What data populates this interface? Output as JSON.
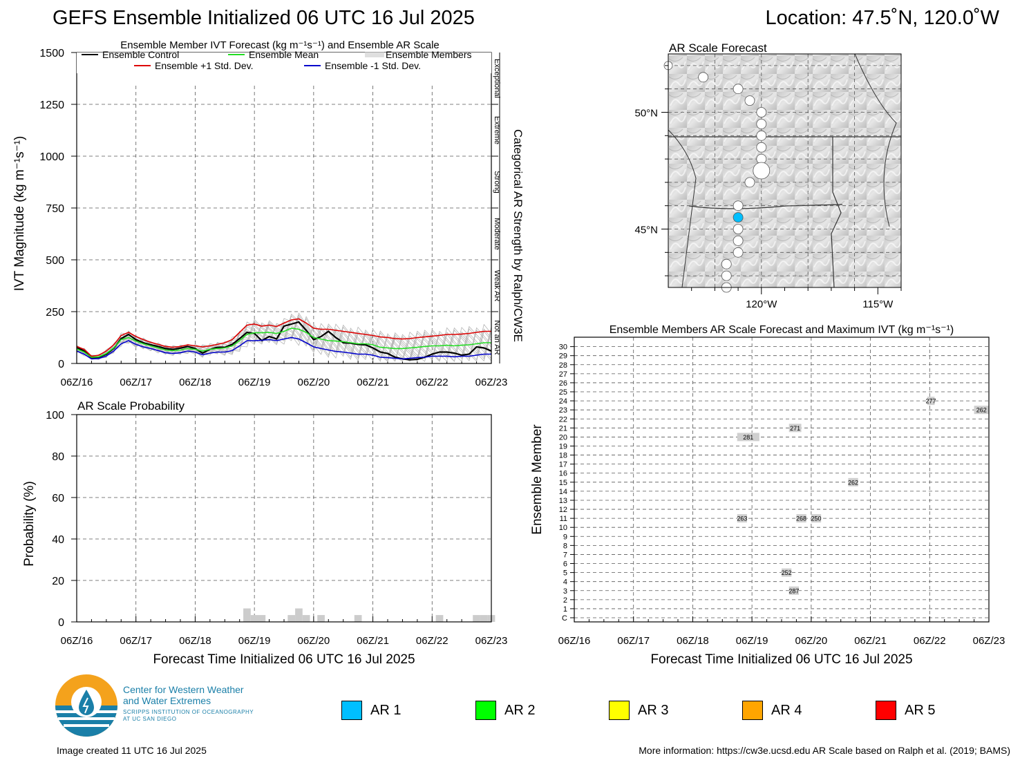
{
  "header": {
    "title": "GEFS Ensemble Initialized 06 UTC 16 Jul 2025",
    "location": "Location: 47.5˚N, 120.0˚W"
  },
  "footer": {
    "created": "Image created 11 UTC 16 Jul 2025",
    "more_info": "More information: https://cw3e.ucsd.edu AR Scale based on Ralph et al. (2019; BAMS)"
  },
  "logo": {
    "line1": "Center for Western Weather",
    "line2": "and Water Extremes",
    "line3": "SCRIPPS INSTITUTION OF OCEANOGRAPHY",
    "line4": "AT UC SAN DIEGO"
  },
  "ar_legend": [
    {
      "label": "AR 1",
      "color": "#00bfff"
    },
    {
      "label": "AR 2",
      "color": "#00ff00"
    },
    {
      "label": "AR 3",
      "color": "#ffff00"
    },
    {
      "label": "AR 4",
      "color": "#ffa500"
    },
    {
      "label": "AR 5",
      "color": "#ff0000"
    }
  ],
  "chart_data": [
    {
      "id": "ivt",
      "type": "line",
      "title": "Ensemble Member IVT Forecast (kg m⁻¹s⁻¹) and Ensemble AR Scale",
      "ylabel": "IVT Magnitude (kg m⁻¹s⁻¹)",
      "right_label": "Categorical AR Strength by Ralph/CW3E",
      "ylim": [
        0,
        1500
      ],
      "xlim": [
        0,
        168
      ],
      "yticks": [
        0,
        250,
        500,
        750,
        1000,
        1250,
        1500
      ],
      "xticks": [
        0,
        24,
        48,
        72,
        96,
        120,
        144,
        168
      ],
      "xticklabels": [
        "06Z/16",
        "06Z/17",
        "06Z/18",
        "06Z/19",
        "06Z/20",
        "06Z/21",
        "06Z/22",
        "06Z/23"
      ],
      "grid": true,
      "categories_right": [
        {
          "label": "Exceptional",
          "from": 1250,
          "to": 1500
        },
        {
          "label": "Extreme",
          "from": 1000,
          "to": 1250
        },
        {
          "label": "Strong",
          "from": 750,
          "to": 1000
        },
        {
          "label": "Moderate",
          "from": 500,
          "to": 750
        },
        {
          "label": "Weak AR",
          "from": 250,
          "to": 500
        },
        {
          "label": "Not an AR",
          "from": 0,
          "to": 250
        }
      ],
      "legend": [
        {
          "name": "Ensemble Control",
          "color": "#000000"
        },
        {
          "name": "Ensemble Mean",
          "color": "#22dd22"
        },
        {
          "name": "Ensemble Members",
          "color": "#aaaaaa"
        },
        {
          "name": "Ensemble +1 Std. Dev.",
          "color": "#dd0000"
        },
        {
          "name": "Ensemble -1 Std. Dev.",
          "color": "#0000cc"
        }
      ],
      "x": [
        0,
        3,
        6,
        9,
        12,
        15,
        18,
        21,
        24,
        27,
        30,
        33,
        36,
        39,
        42,
        45,
        48,
        51,
        54,
        57,
        60,
        63,
        66,
        69,
        72,
        75,
        78,
        81,
        84,
        87,
        90,
        93,
        96,
        99,
        102,
        105,
        108,
        111,
        114,
        117,
        120,
        123,
        126,
        129,
        132,
        135,
        138,
        141,
        144,
        147,
        150,
        153,
        156,
        159,
        162,
        165,
        168
      ],
      "series": [
        {
          "name": "Ensemble Control",
          "color": "#000000",
          "values": [
            78,
            60,
            28,
            30,
            45,
            72,
            120,
            140,
            115,
            100,
            90,
            82,
            72,
            68,
            74,
            82,
            72,
            50,
            68,
            78,
            78,
            92,
            120,
            150,
            145,
            110,
            130,
            118,
            180,
            190,
            200,
            160,
            115,
            130,
            155,
            125,
            100,
            98,
            92,
            90,
            75,
            55,
            48,
            30,
            22,
            18,
            20,
            30,
            45,
            55,
            55,
            50,
            40,
            45,
            80,
            75,
            60
          ]
        },
        {
          "name": "Ensemble Mean",
          "color": "#22dd22",
          "values": [
            70,
            55,
            30,
            32,
            48,
            75,
            115,
            125,
            108,
            95,
            85,
            75,
            65,
            62,
            65,
            72,
            68,
            60,
            68,
            72,
            75,
            85,
            110,
            140,
            148,
            148,
            150,
            145,
            155,
            170,
            165,
            150,
            125,
            118,
            110,
            108,
            105,
            100,
            95,
            95,
            90,
            78,
            75,
            72,
            72,
            75,
            78,
            82,
            85,
            85,
            88,
            85,
            88,
            90,
            95,
            100,
            100
          ]
        },
        {
          "name": "Ensemble +1 Std. Dev.",
          "color": "#dd0000",
          "values": [
            82,
            68,
            35,
            40,
            60,
            90,
            135,
            150,
            130,
            115,
            102,
            92,
            82,
            78,
            82,
            90,
            85,
            80,
            85,
            92,
            100,
            115,
            150,
            185,
            190,
            180,
            185,
            178,
            195,
            210,
            215,
            195,
            170,
            165,
            165,
            160,
            155,
            150,
            145,
            140,
            135,
            128,
            125,
            120,
            118,
            120,
            125,
            128,
            132,
            135,
            140,
            140,
            142,
            145,
            150,
            155,
            155
          ]
        },
        {
          "name": "Ensemble -1 Std. Dev.",
          "color": "#0000cc",
          "values": [
            60,
            45,
            22,
            24,
            36,
            60,
            95,
            110,
            92,
            80,
            72,
            62,
            52,
            48,
            52,
            60,
            55,
            42,
            50,
            55,
            55,
            62,
            85,
            110,
            110,
            112,
            115,
            110,
            118,
            125,
            118,
            100,
            80,
            72,
            65,
            58,
            55,
            50,
            45,
            45,
            40,
            30,
            28,
            25,
            22,
            25,
            28,
            30,
            35,
            35,
            35,
            32,
            35,
            35,
            40,
            45,
            45
          ]
        }
      ]
    },
    {
      "id": "prob",
      "type": "bar",
      "title": "AR Scale Probability",
      "ylabel": "Probability (%)",
      "xlabel": "Forecast Time Initialized 06 UTC 16 Jul 2025",
      "ylim": [
        0,
        100
      ],
      "xlim": [
        0,
        168
      ],
      "yticks": [
        0,
        20,
        40,
        60,
        80,
        100
      ],
      "xticks": [
        0,
        24,
        48,
        72,
        96,
        120,
        144,
        168
      ],
      "xticklabels": [
        "06Z/16",
        "06Z/17",
        "06Z/18",
        "06Z/19",
        "06Z/20",
        "06Z/21",
        "06Z/22",
        "06Z/23"
      ],
      "bar_color": "#cccccc",
      "bars": [
        {
          "x": 69,
          "value": 6.5
        },
        {
          "x": 72,
          "value": 3.3
        },
        {
          "x": 75,
          "value": 3.3
        },
        {
          "x": 87,
          "value": 3.3
        },
        {
          "x": 90,
          "value": 6.5
        },
        {
          "x": 93,
          "value": 3.3
        },
        {
          "x": 99,
          "value": 3.3
        },
        {
          "x": 114,
          "value": 3.3
        },
        {
          "x": 147,
          "value": 3.3
        },
        {
          "x": 162,
          "value": 3.3
        },
        {
          "x": 165,
          "value": 3.3
        },
        {
          "x": 168,
          "value": 3.3
        }
      ]
    },
    {
      "id": "members",
      "type": "scatter",
      "title": "Ensemble Members AR Scale Forecast and Maximum IVT (kg m⁻¹s⁻¹)",
      "ylabel": "Ensemble Member",
      "xlabel": "Forecast Time Initialized 06 UTC 16 Jul 2025",
      "xlim": [
        0,
        168
      ],
      "xticks": [
        0,
        24,
        48,
        72,
        96,
        120,
        144,
        168
      ],
      "xticklabels": [
        "06Z/16",
        "06Z/17",
        "06Z/18",
        "06Z/19",
        "06Z/20",
        "06Z/21",
        "06Z/22",
        "06Z/23"
      ],
      "members": [
        "C",
        "1",
        "2",
        "3",
        "4",
        "5",
        "6",
        "7",
        "8",
        "9",
        "10",
        "11",
        "12",
        "13",
        "14",
        "15",
        "16",
        "17",
        "18",
        "19",
        "20",
        "21",
        "22",
        "23",
        "24",
        "25",
        "26",
        "27",
        "28",
        "29",
        "30"
      ],
      "events": [
        {
          "member": 23,
          "x_start": 162,
          "x_end": 168,
          "value": "262"
        },
        {
          "member": 24,
          "x_start": 143,
          "x_end": 146,
          "value": "277"
        },
        {
          "member": 21,
          "x_start": 87,
          "x_end": 92,
          "value": "271"
        },
        {
          "member": 20,
          "x_start": 66,
          "x_end": 75,
          "value": "281"
        },
        {
          "member": 15,
          "x_start": 111,
          "x_end": 115,
          "value": "262"
        },
        {
          "member": 11,
          "x_start": 66,
          "x_end": 70,
          "value": "263"
        },
        {
          "member": 11,
          "x_start": 90,
          "x_end": 94,
          "value": "268"
        },
        {
          "member": 11,
          "x_start": 96,
          "x_end": 100,
          "value": "250"
        },
        {
          "member": 5,
          "x_start": 84,
          "x_end": 88,
          "value": "252"
        },
        {
          "member": 3,
          "x_start": 87,
          "x_end": 91,
          "value": "287"
        }
      ]
    },
    {
      "id": "map",
      "type": "scatter",
      "title": "AR Scale Forecast",
      "lon_range": [
        -124,
        -114
      ],
      "lat_range": [
        42.5,
        52.5
      ],
      "xticklabels": [
        "120°W",
        "115°W"
      ],
      "yticklabels": [
        "50°N",
        "45°N"
      ],
      "points": [
        {
          "lon": -124.0,
          "lat": 52.0,
          "r": 6,
          "ar": 0
        },
        {
          "lon": -122.5,
          "lat": 51.5,
          "r": 7,
          "ar": 0
        },
        {
          "lon": -121.0,
          "lat": 51.0,
          "r": 7,
          "ar": 0
        },
        {
          "lon": -120.5,
          "lat": 50.5,
          "r": 7,
          "ar": 0
        },
        {
          "lon": -120.0,
          "lat": 50.0,
          "r": 7,
          "ar": 0
        },
        {
          "lon": -120.0,
          "lat": 49.5,
          "r": 7,
          "ar": 0
        },
        {
          "lon": -120.0,
          "lat": 49.0,
          "r": 7,
          "ar": 0
        },
        {
          "lon": -120.0,
          "lat": 48.5,
          "r": 7,
          "ar": 0
        },
        {
          "lon": -120.0,
          "lat": 48.0,
          "r": 7,
          "ar": 0
        },
        {
          "lon": -120.0,
          "lat": 47.5,
          "r": 12,
          "ar": 0
        },
        {
          "lon": -120.5,
          "lat": 47.0,
          "r": 7,
          "ar": 0
        },
        {
          "lon": -121.0,
          "lat": 46.0,
          "r": 7,
          "ar": 0
        },
        {
          "lon": -121.0,
          "lat": 45.5,
          "r": 7,
          "ar": 1
        },
        {
          "lon": -121.0,
          "lat": 45.0,
          "r": 7,
          "ar": 0
        },
        {
          "lon": -121.0,
          "lat": 44.5,
          "r": 7,
          "ar": 0
        },
        {
          "lon": -121.0,
          "lat": 44.0,
          "r": 7,
          "ar": 0
        },
        {
          "lon": -121.5,
          "lat": 43.5,
          "r": 7,
          "ar": 0
        },
        {
          "lon": -121.5,
          "lat": 43.0,
          "r": 7,
          "ar": 0
        },
        {
          "lon": -121.5,
          "lat": 42.5,
          "r": 7,
          "ar": 0
        }
      ]
    }
  ]
}
